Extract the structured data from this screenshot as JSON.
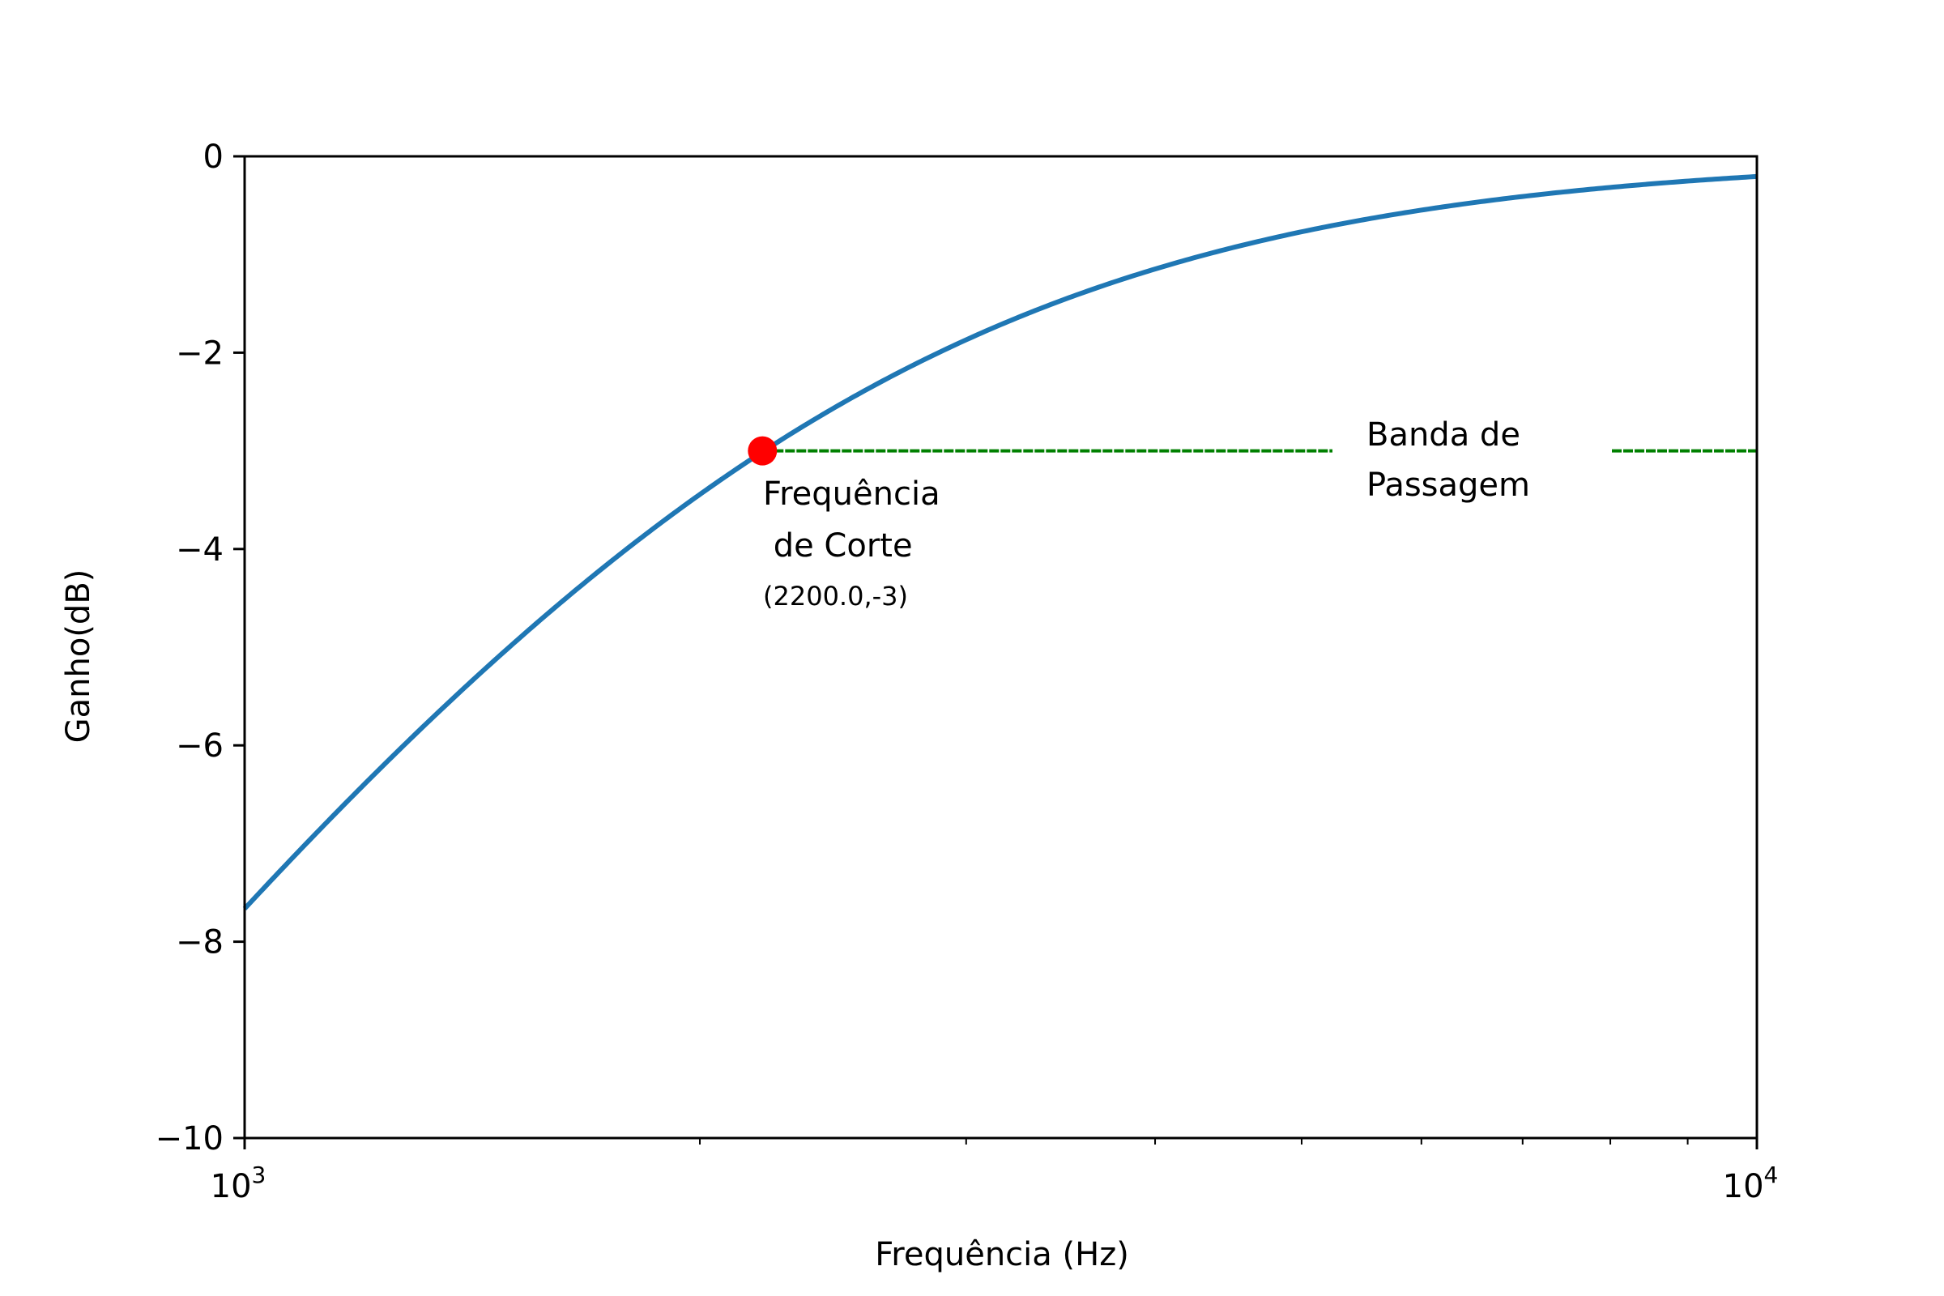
{
  "chart_data": {
    "type": "line",
    "xlabel": "Frequência (Hz)",
    "ylabel": "Ganho(dB)",
    "xscale": "log",
    "xlim": [
      1000,
      10000
    ],
    "ylim": [
      -10,
      0
    ],
    "x_ticks": [
      {
        "value": 1000,
        "base": "10",
        "exp": "3"
      },
      {
        "value": 10000,
        "base": "10",
        "exp": "4"
      }
    ],
    "x_minor_ticks": [
      2000,
      3000,
      4000,
      5000,
      6000,
      7000,
      8000,
      9000
    ],
    "y_ticks": [
      {
        "value": 0,
        "label": "0"
      },
      {
        "value": -2,
        "label": "−2"
      },
      {
        "value": -4,
        "label": "−4"
      },
      {
        "value": -6,
        "label": "−6"
      },
      {
        "value": -8,
        "label": "−8"
      },
      {
        "value": -10,
        "label": "−10"
      }
    ],
    "grid": false,
    "series": [
      {
        "type": "line",
        "color": "#1f77b4",
        "model": "high-pass first order, cutoff 2200 Hz",
        "cutoff_hz": 2200,
        "x_range": [
          1000,
          10000
        ]
      }
    ],
    "cutoff_marker": {
      "x": 2200,
      "y": -3,
      "color": "#ff0000"
    },
    "passband_line": {
      "y": -3,
      "x_start": 2200,
      "x_end": 10000,
      "color": "#008000",
      "style": "dashed"
    },
    "annotations": {
      "cutoff_line1": "Frequência",
      "cutoff_line2": " de Corte",
      "cutoff_coords": "(2200.0,-3)",
      "band_line1": "Banda de",
      "band_line2": "Passagem"
    }
  }
}
